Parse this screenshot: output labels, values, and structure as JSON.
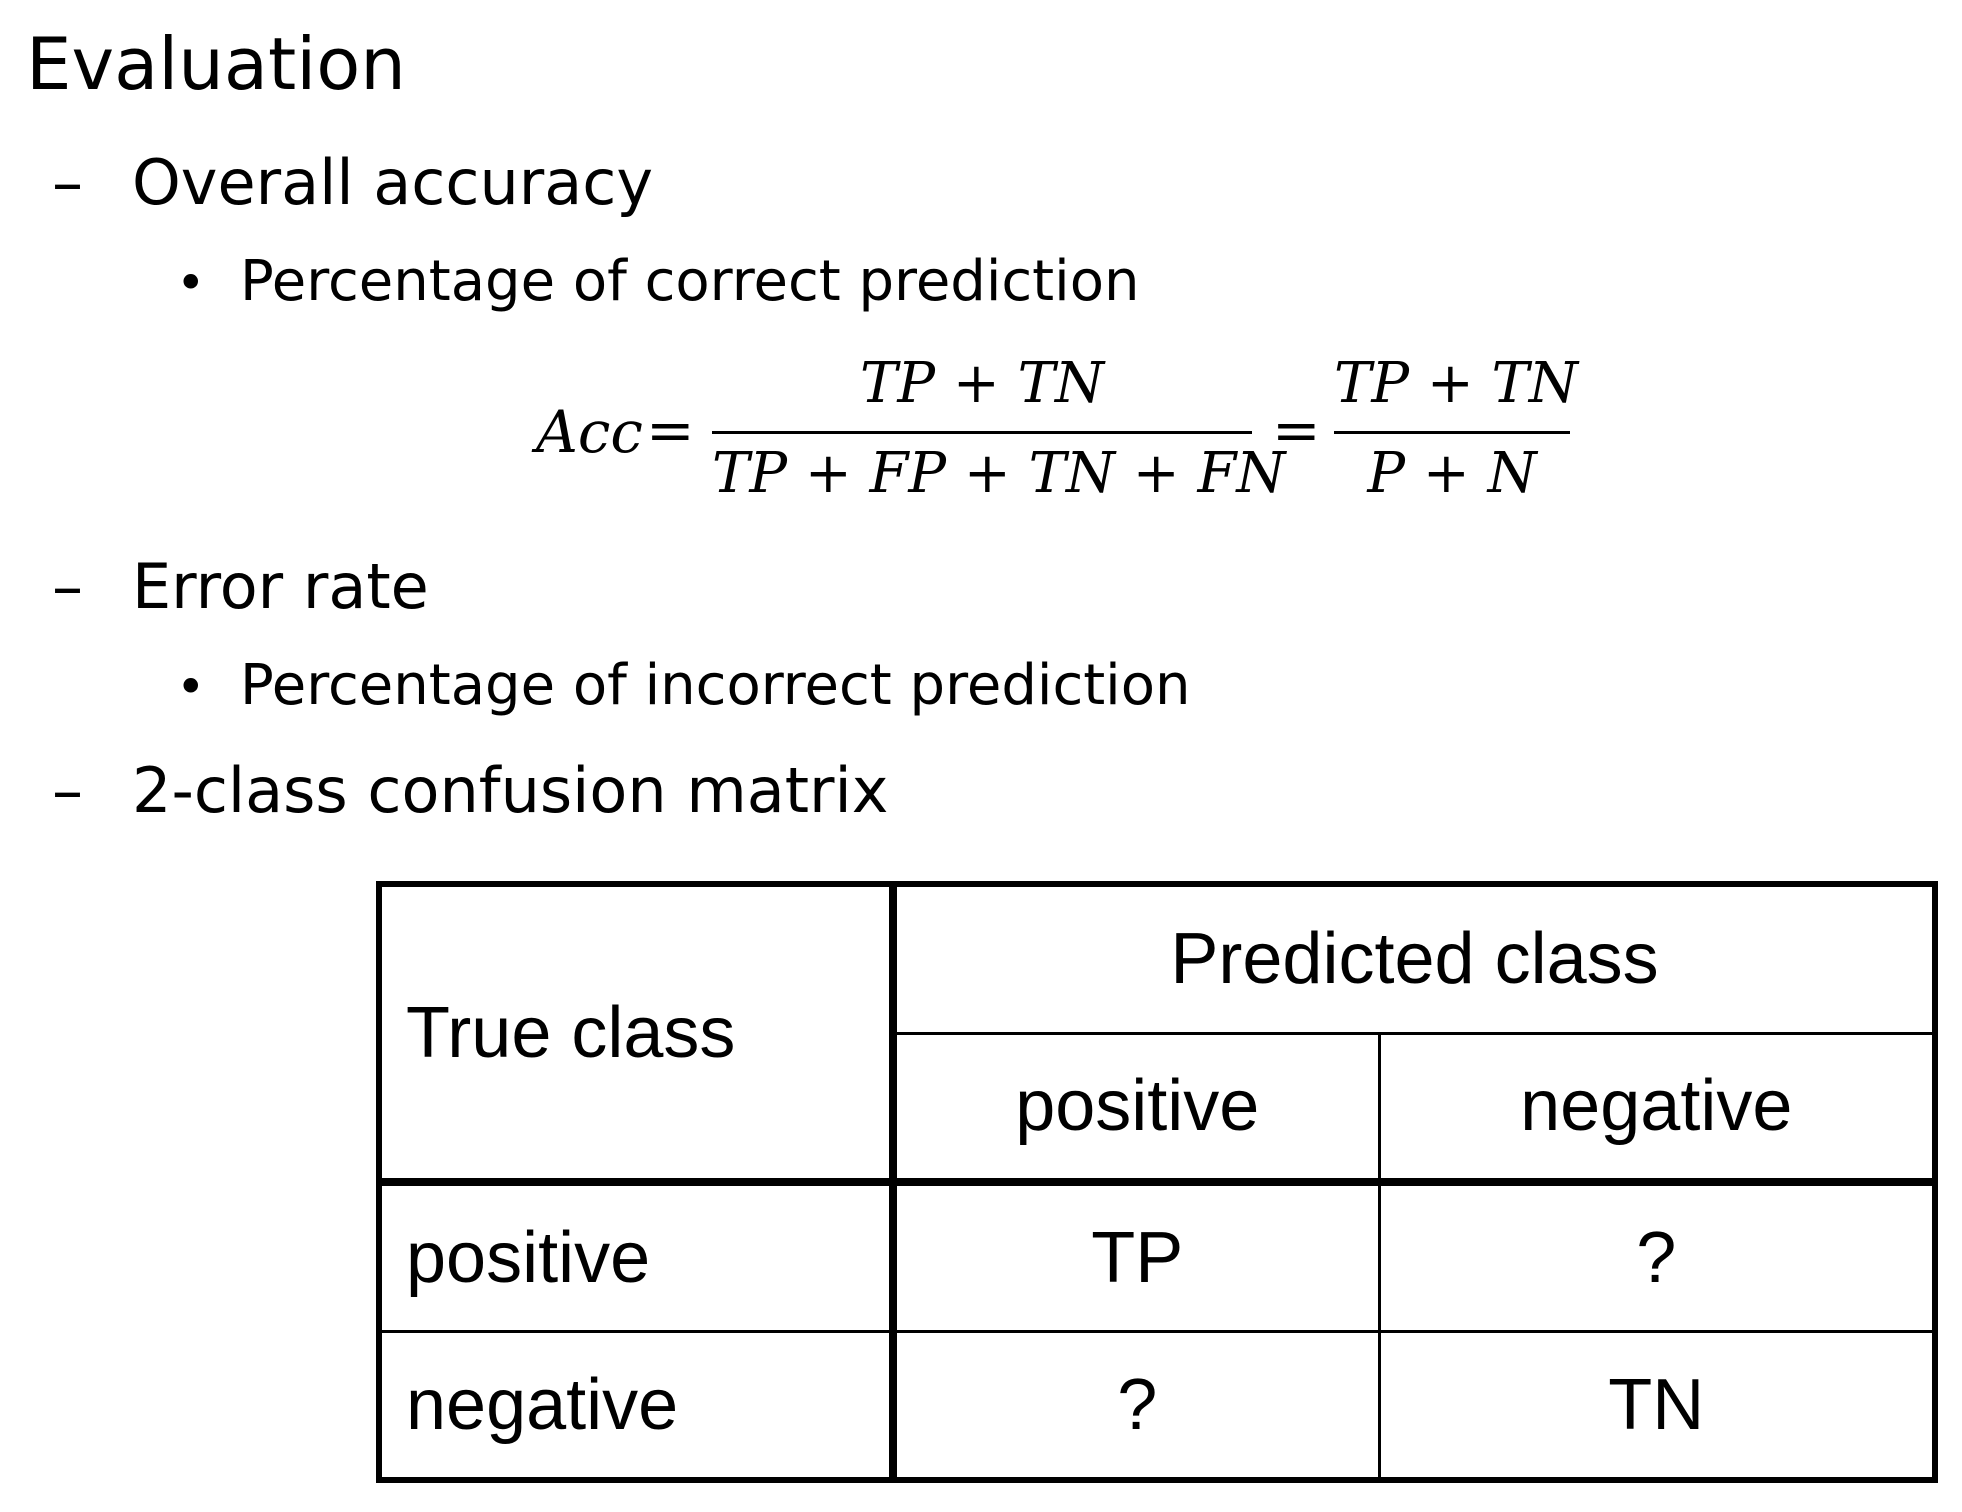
{
  "title": "Evaluation",
  "sections": [
    {
      "heading": "Overall accuracy",
      "bullet": "Percentage of correct prediction"
    },
    {
      "heading": "Error rate",
      "bullet": "Percentage of incorrect prediction"
    },
    {
      "heading": "2-class confusion matrix"
    }
  ],
  "markers": {
    "dash": "–",
    "bullet": "•"
  },
  "formula": {
    "lhs": "Acc",
    "equals": "=",
    "frac1_num": "TP + TN",
    "frac1_den": "TP + FP + TN + FN",
    "frac2_num": "TP + TN",
    "frac2_den": "P + N"
  },
  "table": {
    "true_class_header": "True class",
    "predicted_class_header": "Predicted class",
    "pred_cols": [
      "positive",
      "negative"
    ],
    "rows": [
      {
        "label": "positive",
        "cells": [
          "TP",
          "?"
        ]
      },
      {
        "label": "negative",
        "cells": [
          "?",
          "TN"
        ]
      }
    ]
  }
}
